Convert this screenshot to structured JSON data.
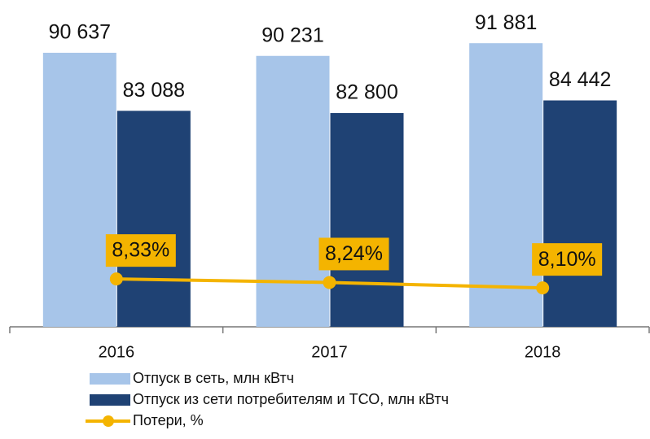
{
  "chart_data": {
    "type": "bar",
    "categories": [
      "2016",
      "2017",
      "2018"
    ],
    "ylim": [
      55000,
      97500
    ],
    "y2lim": [
      7.1,
      15.5
    ],
    "series": [
      {
        "name": "Отпуск в сеть, млн кВтч",
        "color": "#a7c5e9",
        "values": [
          90637,
          90231,
          91881
        ],
        "value_labels": [
          "90 637",
          "90 231",
          "91 881"
        ]
      },
      {
        "name": "Отпуск из сети потребителям и ТСО, млн кВтч",
        "color": "#1f4274",
        "values": [
          83088,
          82800,
          84442
        ],
        "value_labels": [
          "83 088",
          "82 800",
          "84 442"
        ]
      },
      {
        "name": "Потери, %",
        "type": "line",
        "axis": "y2",
        "color": "#f4b400",
        "values": [
          8.33,
          8.24,
          8.1
        ],
        "value_labels": [
          "8,33%",
          "8,24%",
          "8,10%"
        ]
      }
    ]
  }
}
